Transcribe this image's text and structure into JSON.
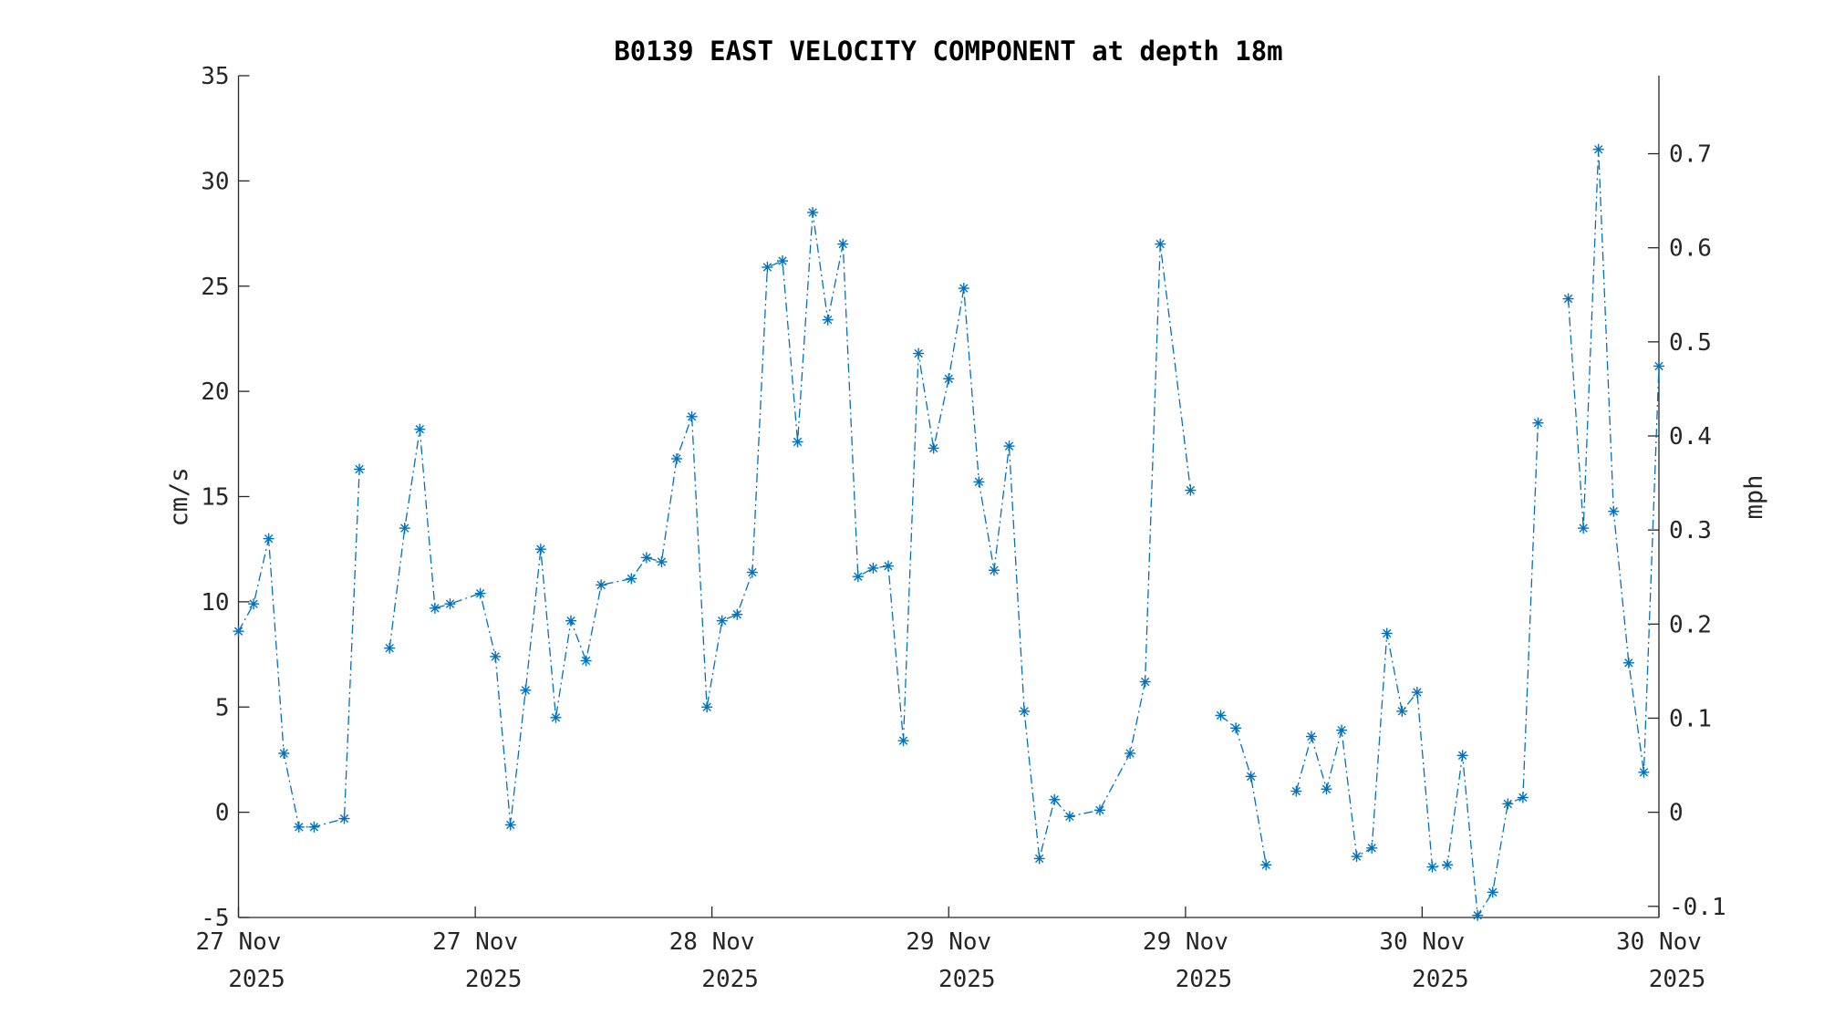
{
  "chart_data": {
    "type": "line",
    "title": "B0139 EAST VELOCITY COMPONENT at depth 18m",
    "xlabel": "",
    "ylabel": "cm/s",
    "ylabel_right": "mph",
    "ylim": [
      -5,
      35
    ],
    "xlim": [
      0,
      94
    ],
    "x_unit": "sample index",
    "yticks": [
      -5,
      0,
      5,
      10,
      15,
      20,
      25,
      30,
      35
    ],
    "yticks_right": [
      -0.1,
      0,
      0.1,
      0.2,
      0.3,
      0.4,
      0.5,
      0.6,
      0.7
    ],
    "cms_per_mph": 44.704,
    "xticks": [
      {
        "x": 0,
        "line1": "27 Nov",
        "line2": "2025"
      },
      {
        "x": 15.67,
        "line1": "27 Nov",
        "line2": "2025"
      },
      {
        "x": 31.33,
        "line1": "28 Nov",
        "line2": "2025"
      },
      {
        "x": 47,
        "line1": "29 Nov",
        "line2": "2025"
      },
      {
        "x": 62.67,
        "line1": "29 Nov",
        "line2": "2025"
      },
      {
        "x": 78.33,
        "line1": "30 Nov",
        "line2": "2025"
      },
      {
        "x": 94,
        "line1": "30 Nov",
        "line2": "2025"
      }
    ],
    "grid": false,
    "series": [
      {
        "name": "East velocity",
        "color": "#0072BD",
        "marker": "asterisk",
        "linestyle": "dash-dot",
        "segments": [
          [
            [
              0,
              8.6
            ],
            [
              1,
              9.9
            ],
            [
              2,
              13.0
            ],
            [
              3,
              2.8
            ],
            [
              4,
              -0.7
            ],
            [
              5,
              -0.7
            ],
            [
              7,
              -0.3
            ],
            [
              8,
              16.3
            ]
          ],
          [
            [
              10,
              7.8
            ],
            [
              11,
              13.5
            ],
            [
              12,
              18.2
            ],
            [
              13,
              9.7
            ],
            [
              14,
              9.9
            ],
            [
              16,
              10.4
            ],
            [
              17,
              7.4
            ],
            [
              18,
              -0.6
            ],
            [
              19,
              5.8
            ],
            [
              20,
              12.5
            ],
            [
              21,
              4.5
            ],
            [
              22,
              9.1
            ],
            [
              23,
              7.2
            ],
            [
              24,
              10.8
            ],
            [
              26,
              11.1
            ],
            [
              27,
              12.1
            ],
            [
              28,
              11.9
            ],
            [
              29,
              16.8
            ],
            [
              30,
              18.8
            ],
            [
              31,
              5.0
            ],
            [
              32,
              9.1
            ],
            [
              33,
              9.4
            ],
            [
              34,
              11.4
            ],
            [
              35,
              25.9
            ],
            [
              36,
              26.2
            ],
            [
              37,
              17.6
            ],
            [
              38,
              28.5
            ],
            [
              39,
              23.4
            ],
            [
              40,
              27.0
            ],
            [
              41,
              11.2
            ],
            [
              42,
              11.6
            ],
            [
              43,
              11.7
            ],
            [
              44,
              3.4
            ],
            [
              45,
              21.8
            ],
            [
              46,
              17.3
            ],
            [
              47,
              20.6
            ],
            [
              48,
              24.9
            ],
            [
              49,
              15.7
            ],
            [
              50,
              11.5
            ],
            [
              51,
              17.4
            ],
            [
              52,
              4.8
            ],
            [
              53,
              -2.2
            ],
            [
              54,
              0.6
            ],
            [
              55,
              -0.2
            ],
            [
              57,
              0.1
            ],
            [
              59,
              2.8
            ],
            [
              60,
              6.2
            ],
            [
              61,
              27.0
            ],
            [
              63,
              15.3
            ]
          ],
          [
            [
              65,
              4.6
            ],
            [
              66,
              4.0
            ],
            [
              67,
              1.7
            ],
            [
              68,
              -2.5
            ]
          ],
          [
            [
              70,
              1.0
            ],
            [
              71,
              3.6
            ],
            [
              72,
              1.1
            ],
            [
              73,
              3.9
            ],
            [
              74,
              -2.1
            ],
            [
              75,
              -1.7
            ],
            [
              76,
              8.5
            ],
            [
              77,
              4.8
            ],
            [
              78,
              5.7
            ],
            [
              79,
              -2.6
            ],
            [
              80,
              -2.5
            ],
            [
              81,
              2.7
            ],
            [
              82,
              -4.9
            ],
            [
              83,
              -3.8
            ],
            [
              84,
              0.4
            ],
            [
              85,
              0.7
            ],
            [
              86,
              18.5
            ]
          ],
          [
            [
              88,
              24.4
            ],
            [
              89,
              13.5
            ],
            [
              90,
              31.5
            ],
            [
              91,
              14.3
            ],
            [
              92,
              7.1
            ],
            [
              93,
              1.9
            ],
            [
              94,
              21.2
            ]
          ]
        ]
      }
    ]
  }
}
